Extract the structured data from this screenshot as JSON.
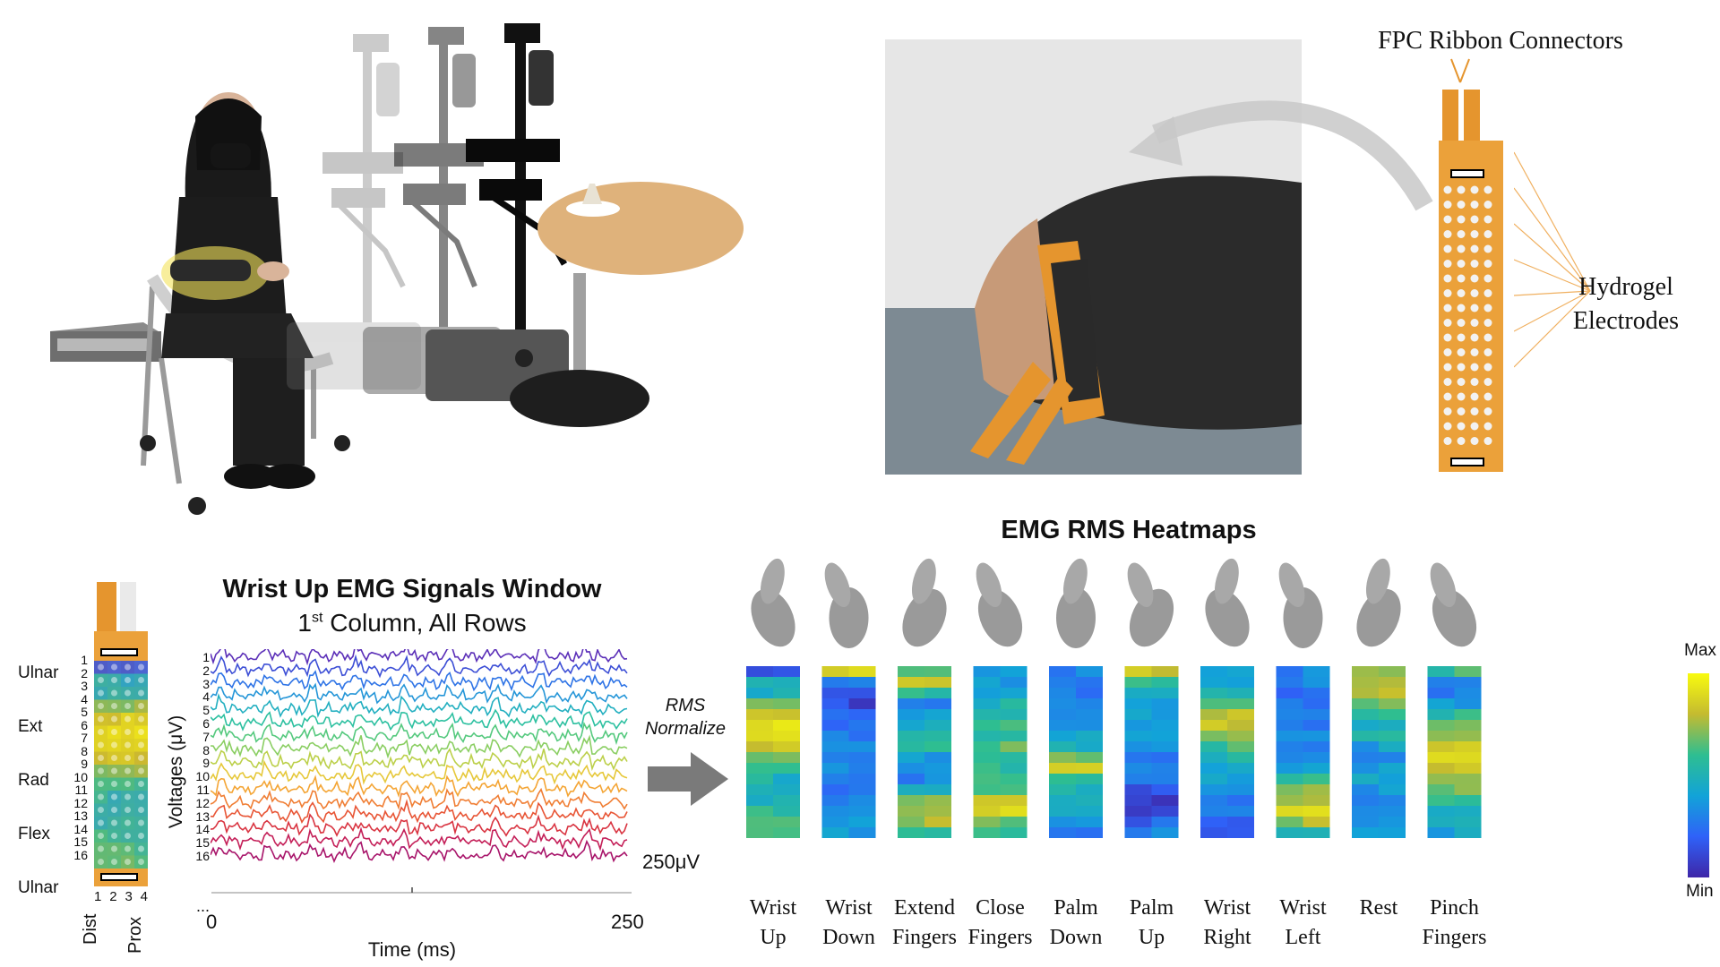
{
  "annotations": {
    "fpc_label": "FPC Ribbon Connectors",
    "hydrogel_label_line1": "Hydrogel",
    "hydrogel_label_line2": "Electrodes"
  },
  "electrode_map": {
    "rows": [
      "1",
      "2",
      "3",
      "4",
      "5",
      "6",
      "7",
      "8",
      "9",
      "10",
      "11",
      "12",
      "13",
      "14",
      "15",
      "16"
    ],
    "regions": [
      "Ulnar",
      "Ext",
      "Rad",
      "Flex",
      "Ulnar"
    ],
    "columns": [
      "1",
      "2",
      "3",
      "4"
    ],
    "axis_left": "Dist",
    "axis_right": "Prox"
  },
  "signals": {
    "title": "Wrist Up EMG Signals Window",
    "subtitle_pre": "1",
    "subtitle_sup": "st",
    "subtitle_post": " Column, All Rows",
    "ylabel": "Voltages (μV)",
    "xlabel": "Time (ms)",
    "x_min": "0",
    "x_max": "250",
    "scale_bar": "250μV",
    "ellipsis": "...",
    "arrow_line1": "RMS",
    "arrow_line2": "Normalize"
  },
  "chart_data": {
    "type": "heatmap",
    "title": "EMG RMS Heatmaps",
    "colorbar": {
      "max": "Max",
      "min": "Min"
    },
    "gestures": [
      {
        "name_line1": "Wrist",
        "name_line2": "Up"
      },
      {
        "name_line1": "Wrist",
        "name_line2": "Down"
      },
      {
        "name_line1": "Extend",
        "name_line2": "Fingers"
      },
      {
        "name_line1": "Close",
        "name_line2": "Fingers"
      },
      {
        "name_line1": "Palm",
        "name_line2": "Down"
      },
      {
        "name_line1": "Palm",
        "name_line2": "Up"
      },
      {
        "name_line1": "Wrist",
        "name_line2": "Right"
      },
      {
        "name_line1": "Wrist",
        "name_line2": "Left"
      },
      {
        "name_line1": "Rest",
        "name_line2": ""
      },
      {
        "name_line1": "Pinch",
        "name_line2": "Fingers"
      }
    ],
    "profiles": [
      [
        0.2,
        0.45,
        0.5,
        0.7,
        0.85,
        0.9,
        0.88,
        0.85,
        0.7,
        0.6,
        0.5,
        0.45,
        0.5,
        0.55,
        0.6,
        0.65
      ],
      [
        0.9,
        0.3,
        0.15,
        0.12,
        0.2,
        0.25,
        0.25,
        0.3,
        0.3,
        0.3,
        0.3,
        0.2,
        0.3,
        0.3,
        0.35,
        0.4
      ],
      [
        0.6,
        0.85,
        0.55,
        0.3,
        0.35,
        0.45,
        0.5,
        0.55,
        0.4,
        0.35,
        0.3,
        0.5,
        0.7,
        0.8,
        0.75,
        0.6
      ],
      [
        0.35,
        0.4,
        0.4,
        0.5,
        0.55,
        0.6,
        0.6,
        0.65,
        0.6,
        0.55,
        0.6,
        0.65,
        0.85,
        0.9,
        0.7,
        0.55
      ],
      [
        0.3,
        0.3,
        0.25,
        0.3,
        0.35,
        0.35,
        0.45,
        0.5,
        0.65,
        0.8,
        0.6,
        0.5,
        0.45,
        0.4,
        0.35,
        0.3
      ],
      [
        0.85,
        0.55,
        0.4,
        0.4,
        0.4,
        0.35,
        0.35,
        0.35,
        0.3,
        0.3,
        0.25,
        0.15,
        0.1,
        0.12,
        0.2,
        0.3
      ],
      [
        0.4,
        0.45,
        0.5,
        0.6,
        0.8,
        0.85,
        0.75,
        0.6,
        0.5,
        0.45,
        0.4,
        0.35,
        0.3,
        0.25,
        0.2,
        0.2
      ],
      [
        0.3,
        0.3,
        0.25,
        0.25,
        0.3,
        0.3,
        0.3,
        0.3,
        0.35,
        0.4,
        0.6,
        0.75,
        0.8,
        0.85,
        0.75,
        0.55
      ],
      [
        0.75,
        0.8,
        0.8,
        0.7,
        0.6,
        0.5,
        0.5,
        0.4,
        0.35,
        0.4,
        0.45,
        0.35,
        0.3,
        0.35,
        0.35,
        0.4
      ],
      [
        0.6,
        0.35,
        0.3,
        0.4,
        0.55,
        0.7,
        0.75,
        0.85,
        0.9,
        0.85,
        0.8,
        0.7,
        0.6,
        0.5,
        0.45,
        0.4
      ]
    ]
  }
}
